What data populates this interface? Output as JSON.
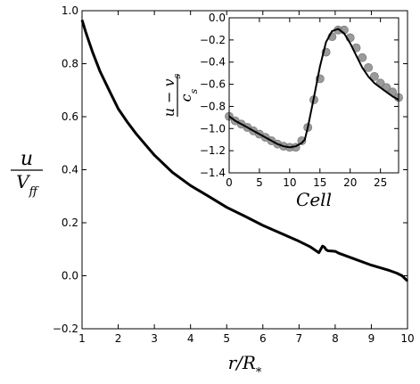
{
  "chart_data": [
    {
      "id": "main",
      "type": "line",
      "xlabel": "r/R*",
      "ylabel": "u / V_ff",
      "xlim": [
        1,
        10
      ],
      "ylim": [
        -0.2,
        1.0
      ],
      "xticks": [
        1,
        2,
        3,
        4,
        5,
        6,
        7,
        8,
        9,
        10
      ],
      "yticks": [
        -0.2,
        0.0,
        0.2,
        0.4,
        0.6,
        0.8,
        1.0
      ],
      "ytick_labels": [
        "−0.2",
        "0.0",
        "0.2",
        "0.4",
        "0.6",
        "0.8",
        "1.0"
      ],
      "grid": false,
      "series": [
        {
          "color": "#000000",
          "x": [
            1.0,
            1.1,
            1.2,
            1.3,
            1.5,
            1.75,
            2.0,
            2.25,
            2.5,
            3.0,
            3.5,
            4.0,
            4.5,
            5.0,
            5.5,
            6.0,
            6.5,
            7.0,
            7.3,
            7.55,
            7.6,
            7.65,
            7.7,
            7.75,
            7.8,
            7.9,
            8.0,
            8.1,
            8.2,
            8.5,
            9.0,
            9.5,
            9.7,
            9.85,
            10.0
          ],
          "y": [
            0.965,
            0.92,
            0.88,
            0.84,
            0.77,
            0.7,
            0.63,
            0.58,
            0.535,
            0.455,
            0.39,
            0.34,
            0.3,
            0.258,
            0.225,
            0.19,
            0.16,
            0.13,
            0.11,
            0.087,
            0.1,
            0.112,
            0.108,
            0.098,
            0.094,
            0.093,
            0.092,
            0.085,
            0.08,
            0.065,
            0.04,
            0.02,
            0.01,
            0.0,
            -0.02
          ]
        }
      ]
    },
    {
      "id": "inset",
      "type": "line",
      "xlabel": "Cell",
      "ylabel": "(u − v_s) / c_s",
      "xlim": [
        0,
        28
      ],
      "ylim": [
        -1.4,
        0.0
      ],
      "xticks": [
        0,
        5,
        10,
        15,
        20,
        25
      ],
      "yticks": [
        -1.4,
        -1.2,
        -1.0,
        -0.8,
        -0.6,
        -0.4,
        -0.2,
        0.0
      ],
      "ytick_labels": [
        "−1.4",
        "−1.2",
        "−1.0",
        "−0.8",
        "−0.6",
        "−0.4",
        "−0.2",
        "0.0"
      ],
      "grid": false,
      "curve": {
        "color": "#000000",
        "x": [
          0,
          1,
          2,
          3,
          4,
          5,
          6,
          7,
          8,
          9,
          10,
          11,
          12,
          12.5,
          13,
          14,
          15,
          16,
          17,
          18,
          19,
          20,
          21,
          22,
          23,
          24,
          25,
          26,
          27,
          28
        ],
        "y": [
          -0.89,
          -0.93,
          -0.96,
          -0.99,
          -1.02,
          -1.05,
          -1.08,
          -1.11,
          -1.14,
          -1.16,
          -1.17,
          -1.16,
          -1.13,
          -1.1,
          -0.99,
          -0.72,
          -0.44,
          -0.22,
          -0.12,
          -0.1,
          -0.14,
          -0.23,
          -0.34,
          -0.45,
          -0.53,
          -0.59,
          -0.63,
          -0.67,
          -0.71,
          -0.74
        ]
      },
      "points": {
        "color": "#888888",
        "x": [
          0,
          1,
          2,
          3,
          4,
          5,
          6,
          7,
          8,
          9,
          10,
          11,
          12,
          13,
          14,
          15,
          16,
          17,
          18,
          19,
          20,
          21,
          22,
          23,
          24,
          25,
          26,
          27,
          28
        ],
        "y": [
          -0.89,
          -0.93,
          -0.96,
          -0.99,
          -1.02,
          -1.05,
          -1.08,
          -1.11,
          -1.14,
          -1.16,
          -1.17,
          -1.17,
          -1.11,
          -0.99,
          -0.74,
          -0.55,
          -0.31,
          -0.17,
          -0.11,
          -0.11,
          -0.18,
          -0.27,
          -0.36,
          -0.45,
          -0.53,
          -0.59,
          -0.63,
          -0.67,
          -0.72
        ]
      }
    }
  ]
}
